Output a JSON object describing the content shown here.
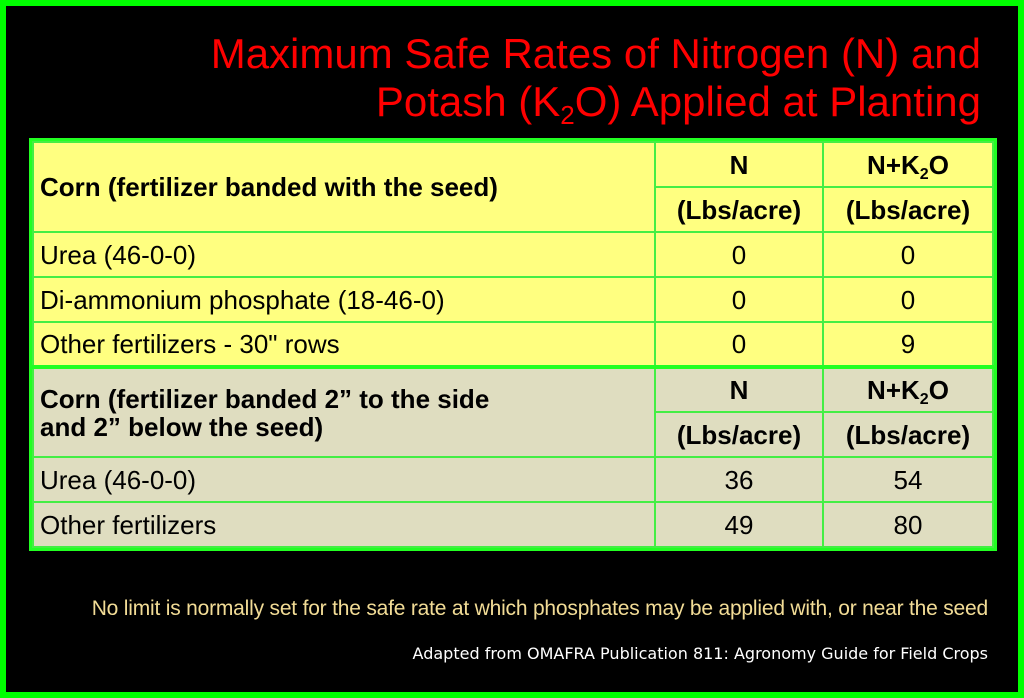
{
  "slide": {
    "colors": {
      "frame": "#00ff00",
      "background": "#000000",
      "title": "#ff0000",
      "section_a_fill": "#ffff80",
      "section_b_fill": "#dfddc0",
      "grid_lines": "#44ee44",
      "footnote": "#f2dc96",
      "source": "#ffffff"
    },
    "title": {
      "line1": "Maximum Safe Rates of Nitrogen (N) and",
      "line2_prefix": "Potash (K",
      "line2_sub": "2",
      "line2_suffix": "O) Applied at Planting"
    },
    "table": {
      "sections": [
        {
          "heading": "Corn (fertilizer banded with the seed)",
          "col_n": "N",
          "col_nk_prefix": "N+K",
          "col_nk_sub": "2",
          "col_nk_suffix": "O",
          "unit_n": "(Lbs/acre)",
          "unit_nk": "(Lbs/acre)",
          "rows": [
            {
              "label": "Urea (46-0-0)",
              "n": "0",
              "nk": "0"
            },
            {
              "label": "Di-ammonium phosphate (18-46-0)",
              "n": "0",
              "nk": "0"
            },
            {
              "label": "Other fertilizers - 30\" rows",
              "n": "0",
              "nk": "9"
            }
          ]
        },
        {
          "heading_line1": "Corn (fertilizer banded 2” to the side",
          "heading_line2": "and 2” below the seed)",
          "col_n": "N",
          "col_nk_prefix": "N+K",
          "col_nk_sub": "2",
          "col_nk_suffix": "O",
          "unit_n": "(Lbs/acre)",
          "unit_nk": "(Lbs/acre)",
          "rows": [
            {
              "label": "Urea (46-0-0)",
              "n": "36",
              "nk": "54"
            },
            {
              "label": "Other fertilizers",
              "n": "49",
              "nk": "80"
            }
          ]
        }
      ]
    },
    "footnote": "No limit is normally set for the safe rate at which phosphates may be applied with, or near the seed",
    "source": "Adapted from OMAFRA Publication 811: Agronomy Guide for Field Crops"
  }
}
